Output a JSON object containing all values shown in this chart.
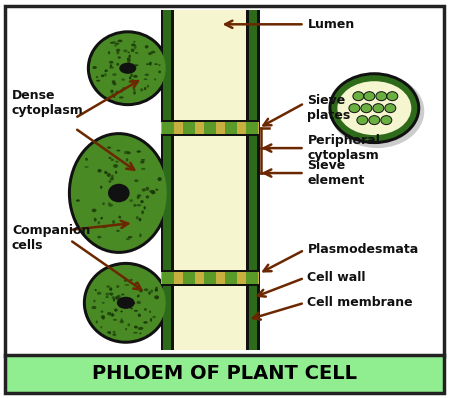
{
  "title": "PHLOEM OF PLANT CELL",
  "title_bg": "#90EE90",
  "title_color": "#000000",
  "bg_color": "#ffffff",
  "border_color": "#222222",
  "lumen_color": "#f5f5d0",
  "cell_wall_color": "#2d6b1a",
  "companion_fill": "#4a8a25",
  "companion_speckle": "#1a3a08",
  "companion_light": "#6ab040",
  "sieve_plate_bg": "#c8b040",
  "sieve_plate_green": "#5a9a28",
  "arrow_color": "#6b2800",
  "tube_black": "#111111",
  "nucleus_color": "#111111",
  "labels": {
    "lumen": "Lumen",
    "sieve_plates": "Sieve\nplates",
    "peripheral_cytoplasm": "Peripheral\ncytoplasm",
    "sieve_element": "Sieve\nelement",
    "plasmodesmata": "Plasmodesmata",
    "cell_wall": "Cell wall",
    "cell_membrane": "Cell membrane",
    "dense_cytoplasm": "Dense\ncytoplasm",
    "companion_cells": "Companion\ncells"
  },
  "fig_width": 4.5,
  "fig_height": 3.98,
  "dpi": 100
}
